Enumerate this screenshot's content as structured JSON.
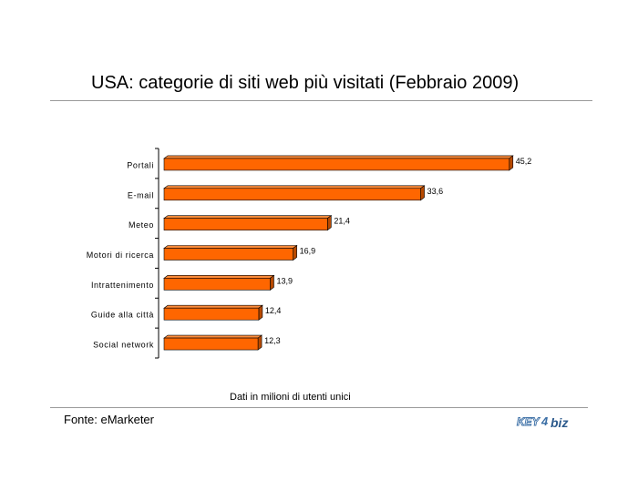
{
  "title": "USA: categorie di siti web più visitati (Febbraio 2009)",
  "note": "Dati in milioni di utenti unici",
  "source": "Fonte: eMarketer",
  "logo": {
    "text": "KEY4biz"
  },
  "colors": {
    "bar": "#ff6600",
    "bar_side": "#b84a00",
    "bar_top": "#ff8c3a"
  },
  "chart_data": {
    "type": "bar",
    "orientation": "horizontal",
    "categories": [
      "Portali",
      "E-mail",
      "Meteo",
      "Motori di ricerca",
      "Intrattenimento",
      "Guide alla città",
      "Social network"
    ],
    "values": [
      45.2,
      33.6,
      21.4,
      16.9,
      13.9,
      12.4,
      12.3
    ],
    "value_labels": [
      "45,2",
      "33,6",
      "21,4",
      "16,9",
      "13,9",
      "12,4",
      "12,3"
    ],
    "grid": false
  }
}
